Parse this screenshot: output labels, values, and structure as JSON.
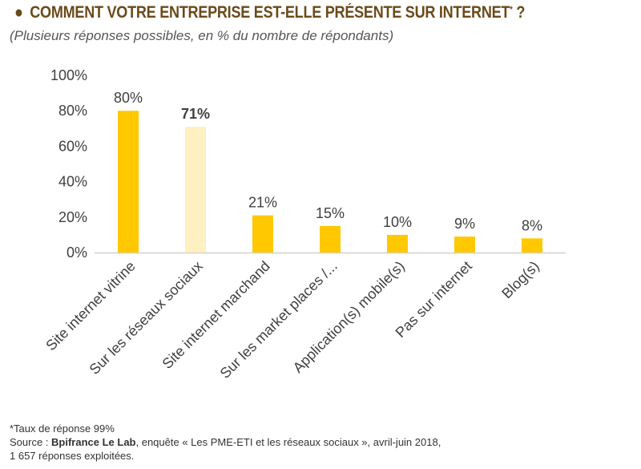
{
  "title": {
    "bullet": "●",
    "text": "COMMENT VOTRE ENTREPRISE EST-ELLE PRÉSENTE SUR INTERNET",
    "sup": "*",
    "suffix": " ?"
  },
  "subtitle": "(Plusieurs réponses possibles, en % du nombre de répondants)",
  "chart_data": {
    "type": "bar",
    "categories": [
      "Site internet vitrine",
      "Sur les réseaux sociaux",
      "Site internet marchand",
      "Sur les market places /...",
      "Application(s) mobile(s)",
      "Pas sur internet",
      "Blog(s)"
    ],
    "values": [
      80,
      71,
      21,
      15,
      10,
      9,
      8
    ],
    "data_labels": [
      "80%",
      "71%",
      "21%",
      "15%",
      "10%",
      "9%",
      "8%"
    ],
    "highlighted_index": 1,
    "ylim": [
      0,
      100
    ],
    "yticks": [
      "0%",
      "20%",
      "40%",
      "60%",
      "80%",
      "100%"
    ],
    "grid": false,
    "colors": {
      "bar": "#FFC800",
      "highlight_bar": "#FFF0C2",
      "axis": "#d0d0d0",
      "text": "#404040"
    }
  },
  "footer": {
    "note": "*Taux de réponse 99%",
    "source_prefix": "Source : ",
    "source_bold": "Bpifrance Le Lab",
    "source_rest": ", enquête « Les PME-ETI et les réseaux sociaux », avril-juin 2018,",
    "source_line2": "1 657 réponses exploitées."
  }
}
